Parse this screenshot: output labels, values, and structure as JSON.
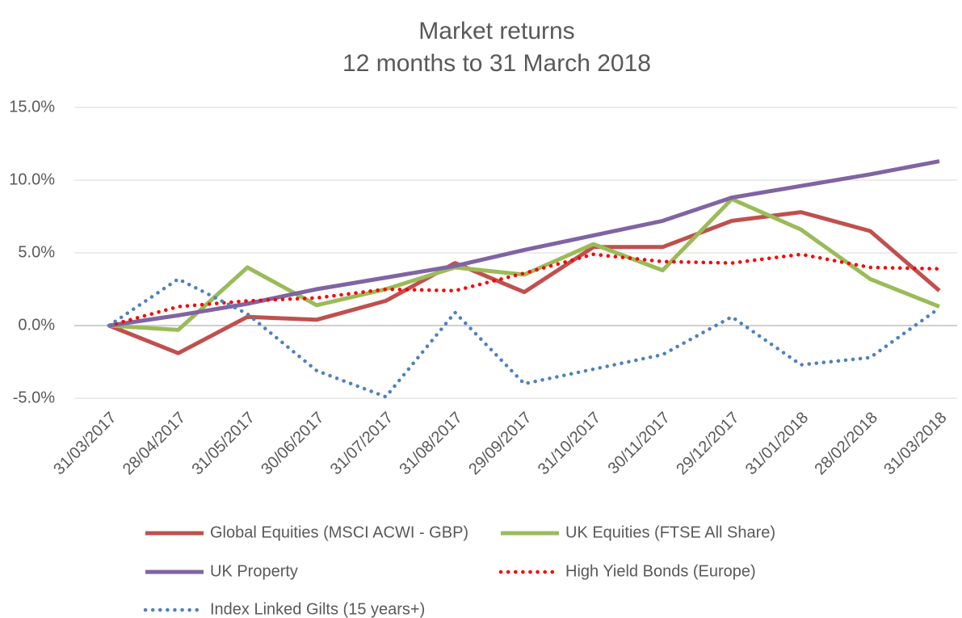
{
  "chart_data": {
    "type": "line",
    "title": "Market returns",
    "subtitle": "12 months to 31 March 2018",
    "categories": [
      "31/03/2017",
      "28/04/2017",
      "31/05/2017",
      "30/06/2017",
      "31/07/2017",
      "31/08/2017",
      "29/09/2017",
      "31/10/2017",
      "30/11/2017",
      "29/12/2017",
      "31/01/2018",
      "28/02/2018",
      "31/03/2018"
    ],
    "series": [
      {
        "name": "Global Equities (MSCI ACWI - GBP)",
        "color": "#c0504d",
        "line_style": "solid",
        "values": [
          0,
          -1.9,
          0.6,
          0.4,
          1.7,
          4.3,
          2.3,
          5.4,
          5.4,
          7.2,
          7.8,
          6.5,
          2.4
        ]
      },
      {
        "name": "UK Equities (FTSE All Share)",
        "color": "#9bbb59",
        "line_style": "solid",
        "values": [
          0,
          -0.3,
          4.0,
          1.4,
          2.5,
          4.0,
          3.5,
          5.6,
          3.8,
          8.7,
          6.6,
          3.2,
          1.3
        ]
      },
      {
        "name": "UK Property",
        "color": "#8064a2",
        "line_style": "solid",
        "values": [
          0,
          0.7,
          1.5,
          2.5,
          3.3,
          4.1,
          5.2,
          6.2,
          7.2,
          8.8,
          9.6,
          10.4,
          11.3
        ]
      },
      {
        "name": "High Yield Bonds (Europe)",
        "color": "#ff0000",
        "line_style": "dotted",
        "values": [
          0,
          1.3,
          1.7,
          1.9,
          2.5,
          2.4,
          3.6,
          4.9,
          4.4,
          4.3,
          4.9,
          4.0,
          3.9
        ]
      },
      {
        "name": "Index Linked Gilts (15 years+)",
        "color": "#4f81bd",
        "line_style": "dotted",
        "values": [
          0,
          3.2,
          0.8,
          -3.1,
          -4.9,
          0.9,
          -4.0,
          -3.0,
          -2.0,
          0.6,
          -2.7,
          -2.2,
          1.2
        ]
      }
    ],
    "ylim": [
      -5,
      15
    ],
    "yticks": [
      {
        "value": -5,
        "label": "-5.0%"
      },
      {
        "value": 0,
        "label": "0.0%"
      },
      {
        "value": 5,
        "label": "5.0%"
      },
      {
        "value": 10,
        "label": "10.0%"
      },
      {
        "value": 15,
        "label": "15.0%"
      }
    ],
    "grid": true,
    "legend": "bottom"
  }
}
